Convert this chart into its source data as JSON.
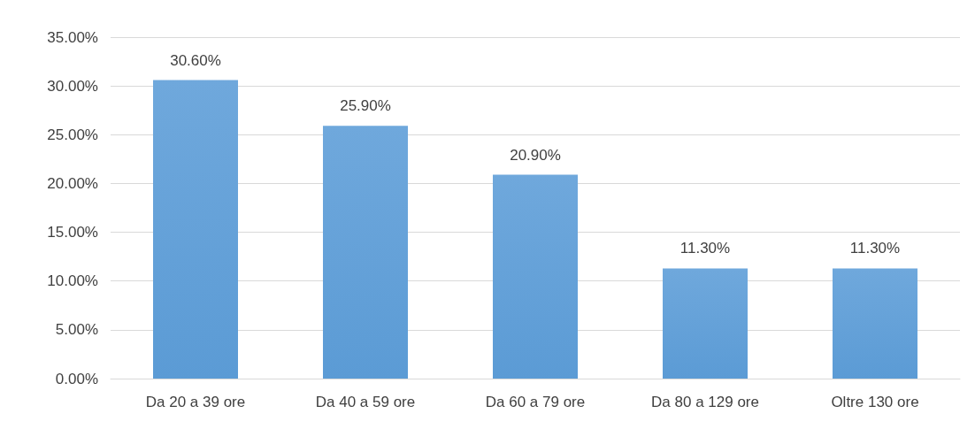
{
  "chart_data": {
    "type": "bar",
    "categories": [
      "Da 20 a 39 ore",
      "Da 40 a 59 ore",
      "Da 60 a 79 ore",
      "Da 80 a 129 ore",
      "Oltre 130 ore"
    ],
    "values": [
      30.6,
      25.9,
      20.9,
      11.3,
      11.3
    ],
    "value_labels": [
      "30.60%",
      "25.90%",
      "20.90%",
      "11.30%",
      "11.30%"
    ],
    "color": "#5b9bd5",
    "ylim": [
      0,
      35
    ],
    "yticks": [
      {
        "value": 0,
        "label": "0.00%"
      },
      {
        "value": 5,
        "label": "5.00%"
      },
      {
        "value": 10,
        "label": "10.00%"
      },
      {
        "value": 15,
        "label": "15.00%"
      },
      {
        "value": 20,
        "label": "20.00%"
      },
      {
        "value": 25,
        "label": "25.00%"
      },
      {
        "value": 30,
        "label": "30.00%"
      },
      {
        "value": 35,
        "label": "35.00%"
      }
    ],
    "grid": "y"
  }
}
